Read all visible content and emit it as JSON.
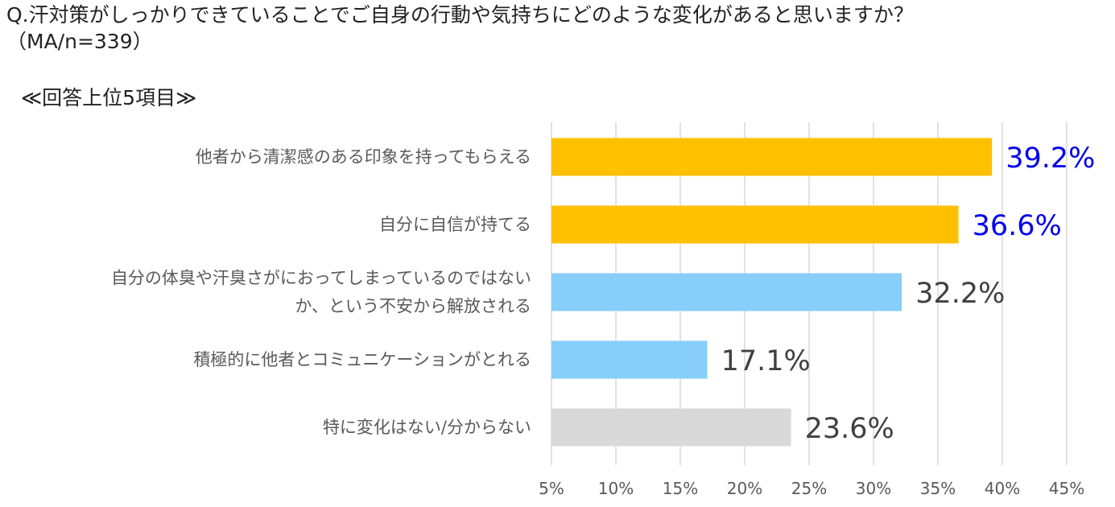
{
  "question": {
    "line1": "Q.汗対策がしっかりできていることでご自身の行動や気持ちにどのような変化があると思いますか？",
    "line2": "（MA/n=339）"
  },
  "subtitle": "≪回答上位5項目≫",
  "chart_data": {
    "type": "bar",
    "orientation": "horizontal",
    "categories": [
      [
        "他者から清潔感のある印象を持ってもらえる"
      ],
      [
        "自分に自信が持てる"
      ],
      [
        "自分の体臭や汗臭さがにおってしまっているのではない",
        "か、という不安から解放される"
      ],
      [
        "積極的に他者とコミュニケーションがとれる"
      ],
      [
        "特に変化はない/分からない"
      ]
    ],
    "values": [
      39.2,
      36.6,
      32.2,
      17.1,
      23.6
    ],
    "value_labels": [
      "39.2%",
      "36.6%",
      "32.2%",
      "17.1%",
      "23.6%"
    ],
    "bar_colors": [
      "#FFC000",
      "#FFC000",
      "#87CEFA",
      "#87CEFA",
      "#D9D9D9"
    ],
    "value_label_colors": [
      "#0000EE",
      "#0000EE",
      "#404040",
      "#404040",
      "#404040"
    ],
    "xlim": [
      5,
      45
    ],
    "xticks": [
      5,
      10,
      15,
      20,
      25,
      30,
      35,
      40,
      45
    ],
    "xtick_labels": [
      "5%",
      "10%",
      "15%",
      "20%",
      "25%",
      "30%",
      "35%",
      "40%",
      "45%"
    ],
    "grid": true,
    "gridline_color": "#D9D9D9",
    "legend": "none"
  }
}
